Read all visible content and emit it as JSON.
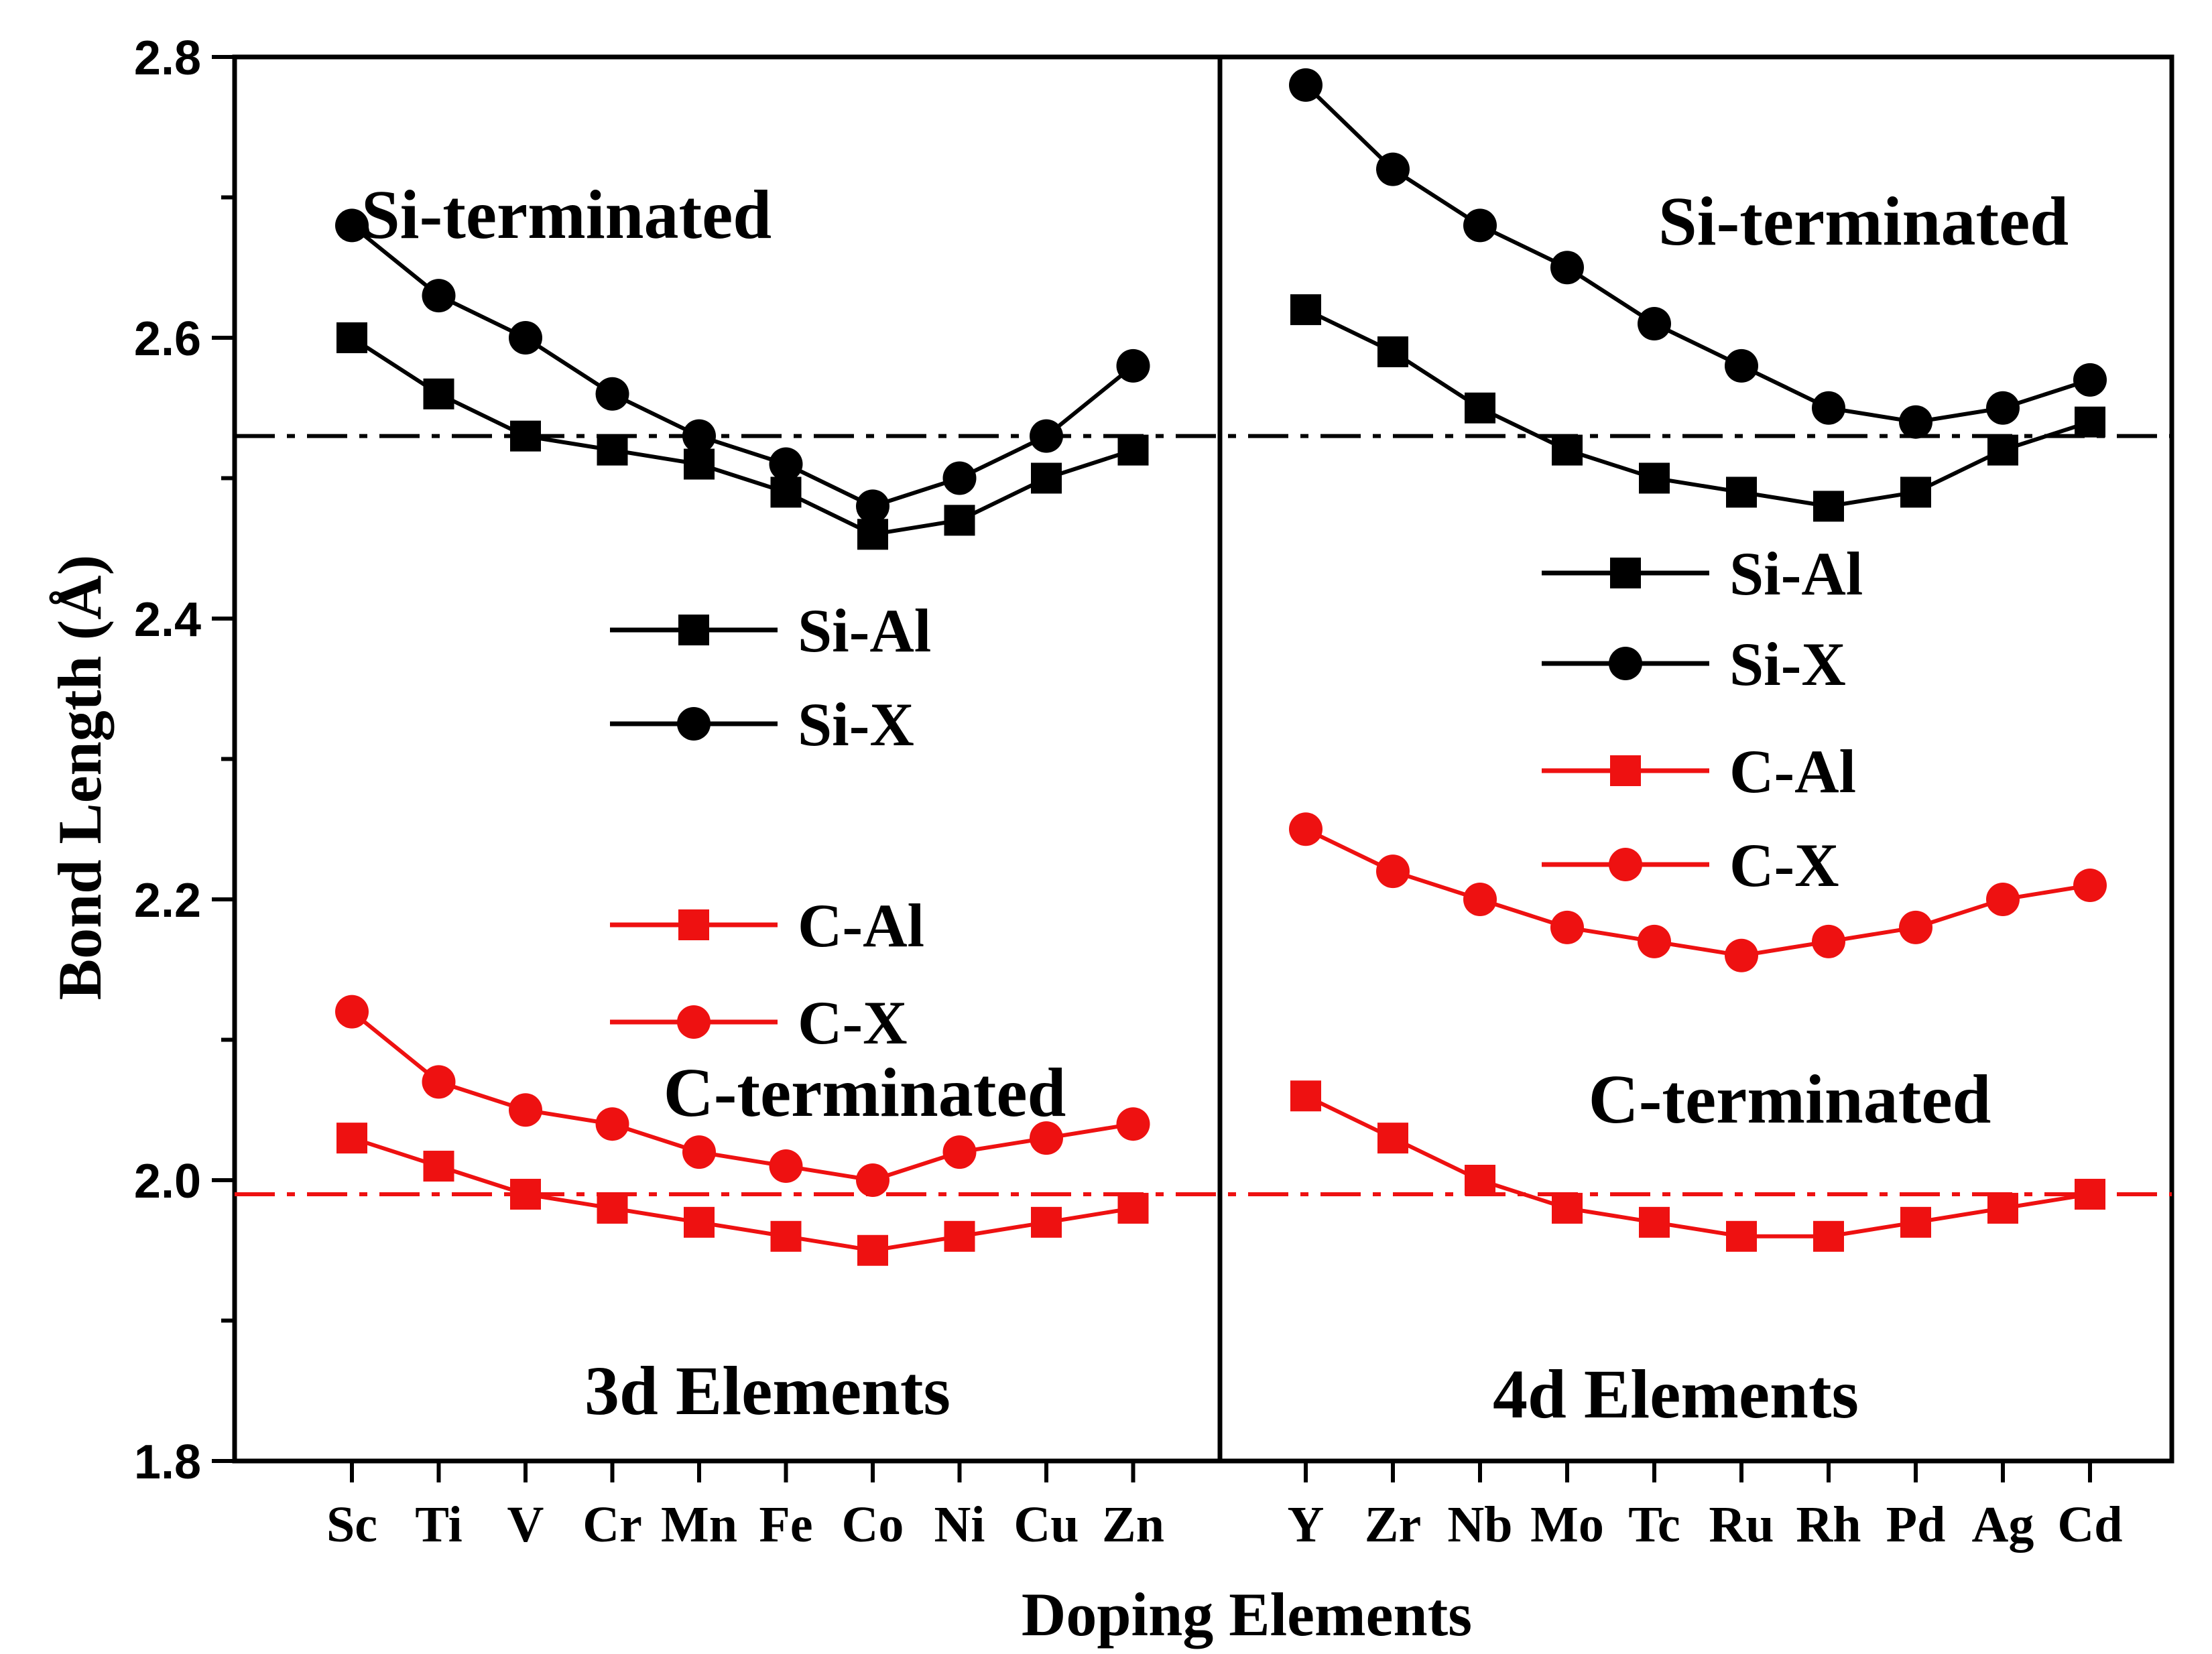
{
  "chart_data": {
    "type": "line",
    "xlabel": "Doping Elements",
    "ylabel": "Bond Length (Å)",
    "ylim": [
      1.8,
      2.8
    ],
    "yticks": [
      "1.8",
      "2.0",
      "2.2",
      "2.4",
      "2.6",
      "2.8"
    ],
    "grid": false,
    "panels": [
      {
        "name": "3d Elements",
        "categories": [
          "Sc",
          "Ti",
          "V",
          "Cr",
          "Mn",
          "Fe",
          "Co",
          "Ni",
          "Cu",
          "Zn"
        ],
        "annotations": [
          "Si-terminated",
          "C-terminated",
          "3d Elements"
        ],
        "series": [
          {
            "name": "Si-Al",
            "color": "#000000",
            "marker": "square",
            "values": [
              2.6,
              2.56,
              2.53,
              2.52,
              2.51,
              2.49,
              2.46,
              2.47,
              2.5,
              2.52
            ]
          },
          {
            "name": "Si-X",
            "color": "#000000",
            "marker": "circle",
            "values": [
              2.68,
              2.63,
              2.6,
              2.56,
              2.53,
              2.51,
              2.48,
              2.5,
              2.53,
              2.58
            ]
          },
          {
            "name": "C-Al",
            "color": "#ee1111",
            "marker": "square",
            "values": [
              2.03,
              2.01,
              1.99,
              1.98,
              1.97,
              1.96,
              1.95,
              1.96,
              1.97,
              1.98
            ]
          },
          {
            "name": "C-X",
            "color": "#ee1111",
            "marker": "circle",
            "values": [
              2.12,
              2.07,
              2.05,
              2.04,
              2.02,
              2.01,
              2.0,
              2.02,
              2.03,
              2.04
            ]
          }
        ]
      },
      {
        "name": "4d Elements",
        "categories": [
          "Y",
          "Zr",
          "Nb",
          "Mo",
          "Tc",
          "Ru",
          "Rh",
          "Pd",
          "Ag",
          "Cd"
        ],
        "annotations": [
          "Si-terminated",
          "C-terminated",
          "4d Elements"
        ],
        "series": [
          {
            "name": "Si-Al",
            "color": "#000000",
            "marker": "square",
            "values": [
              2.62,
              2.59,
              2.55,
              2.52,
              2.5,
              2.49,
              2.48,
              2.49,
              2.52,
              2.54
            ]
          },
          {
            "name": "Si-X",
            "color": "#000000",
            "marker": "circle",
            "values": [
              2.78,
              2.72,
              2.68,
              2.65,
              2.61,
              2.58,
              2.55,
              2.54,
              2.55,
              2.57
            ]
          },
          {
            "name": "C-Al",
            "color": "#ee1111",
            "marker": "square",
            "values": [
              2.06,
              2.03,
              2.0,
              1.98,
              1.97,
              1.96,
              1.96,
              1.97,
              1.98,
              1.99
            ]
          },
          {
            "name": "C-X",
            "color": "#ee1111",
            "marker": "circle",
            "values": [
              2.25,
              2.22,
              2.2,
              2.18,
              2.17,
              2.16,
              2.17,
              2.18,
              2.2,
              2.21
            ]
          }
        ]
      }
    ],
    "reference_lines": [
      {
        "y": 2.53,
        "color": "#000000",
        "style": "dash-dot"
      },
      {
        "y": 1.99,
        "color": "#ee1111",
        "style": "dash-dot"
      }
    ],
    "legend": {
      "entries": [
        "Si-Al",
        "Si-X",
        "C-Al",
        "C-X"
      ]
    }
  }
}
